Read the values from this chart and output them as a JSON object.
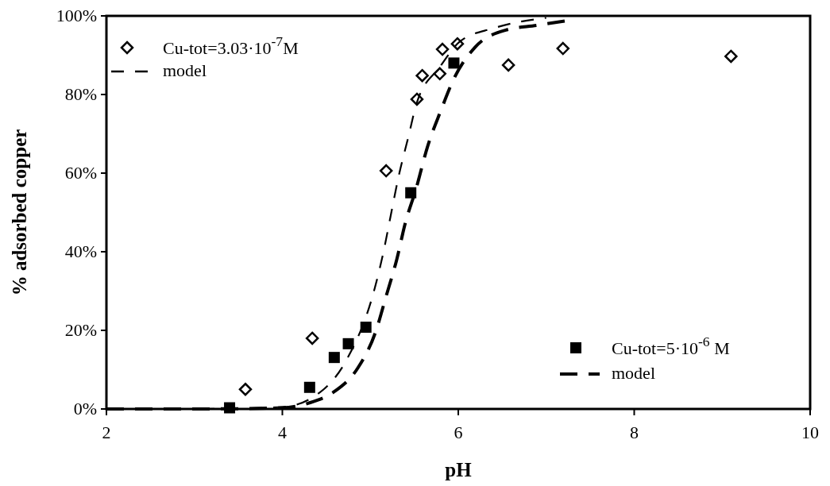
{
  "chart_data": {
    "type": "scatter",
    "xlabel": "pH",
    "ylabel": "% adsorbed copper",
    "xlim": [
      2,
      10
    ],
    "xticks": [
      2,
      4,
      6,
      8,
      10
    ],
    "ylim": [
      0,
      100
    ],
    "yticks": [
      {
        "value": 0,
        "label": "0%"
      },
      {
        "value": 20,
        "label": "20%"
      },
      {
        "value": 40,
        "label": "40%"
      },
      {
        "value": 60,
        "label": "60%"
      },
      {
        "value": 80,
        "label": "80%"
      },
      {
        "value": 100,
        "label": "100%"
      }
    ],
    "grid": false,
    "legend": "top left",
    "series": [
      {
        "name": "Cu-tot=3.03·10$^{-7}$M",
        "marker": "diamond",
        "color": "#000000",
        "x": [
          3.58,
          4.34,
          5.18,
          5.53,
          5.59,
          5.79,
          5.82,
          5.99,
          6.57,
          7.19,
          9.1
        ],
        "values": [
          5,
          18,
          60.6,
          78.8,
          84.8,
          85.3,
          91.5,
          92.9,
          87.5,
          91.7,
          89.7
        ]
      },
      {
        "name": "model",
        "type": "line",
        "line_style": "dashed",
        "marker": "none",
        "color": "#000000",
        "x": [
          2,
          3,
          4,
          4.47,
          4.73,
          5.05,
          5.15,
          5.23,
          5.32,
          5.43,
          5.53,
          5.79,
          6.02,
          6.39,
          6.7,
          7
        ],
        "values": [
          0,
          0,
          0.5,
          5,
          12.5,
          30.7,
          40,
          49,
          59,
          69,
          78,
          87,
          93.5,
          96.8,
          98.5,
          99.5
        ]
      },
      {
        "name": "Cu-tot=5·10$^{-6}$ M",
        "marker": "square",
        "color": "#000000",
        "x": [
          3.4,
          4.31,
          4.59,
          4.75,
          4.95,
          5.46,
          5.95
        ],
        "values": [
          0.3,
          5.5,
          13.1,
          16.6,
          20.8,
          55,
          88
        ]
      },
      {
        "name": "model",
        "type": "line",
        "line_style": "dashed",
        "marker": "none",
        "color": "#000000",
        "x": [
          2,
          3,
          4,
          4.3,
          4.59,
          4.86,
          5.06,
          5.18,
          5.3,
          5.4,
          5.52,
          5.65,
          5.8,
          5.95,
          6.19,
          6.54,
          6.89,
          7.3
        ],
        "values": [
          0,
          0,
          0.3,
          1.5,
          4.4,
          10.5,
          19.6,
          28.7,
          38,
          47.5,
          56,
          66.7,
          75.8,
          84,
          92,
          96.4,
          97.6,
          99
        ]
      }
    ]
  }
}
